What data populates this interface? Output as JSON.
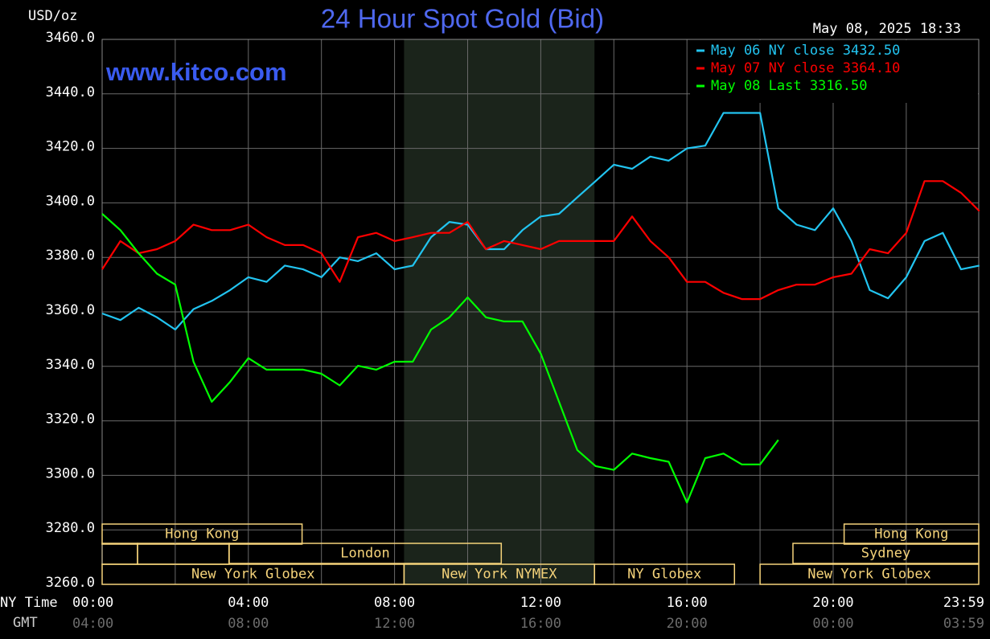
{
  "chart_data": {
    "type": "line",
    "title": "24 Hour Spot Gold (Bid)",
    "y_label": "USD/oz",
    "timestamp": "May 08, 2025 18:33",
    "watermark": "www.kitco.com",
    "x_label": "NY Time",
    "x2_label": "GMT",
    "x": [
      0,
      0.5,
      1,
      1.5,
      2,
      2.5,
      3,
      3.5,
      4,
      4.5,
      5,
      5.5,
      6,
      6.5,
      7,
      7.5,
      8,
      8.5,
      9,
      9.5,
      10,
      10.5,
      11,
      11.5,
      12,
      12.5,
      13,
      13.5,
      14,
      14.5,
      15,
      15.5,
      16,
      16.5,
      17,
      17.5,
      18,
      18.5,
      19,
      19.5,
      20,
      20.5,
      21,
      21.5,
      22,
      22.5,
      23,
      23.5,
      24
    ],
    "series": [
      {
        "name": "May 06 NY close 3432.50",
        "color": "#22c4f0",
        "values": [
          3359.4,
          3357,
          3361.5,
          3358,
          3353.5,
          3361,
          3364,
          3368,
          3372.7,
          3371,
          3377,
          3375.6,
          3372.7,
          3380,
          3378.6,
          3381.5,
          3375.6,
          3377,
          3387.4,
          3393,
          3392,
          3383,
          3383,
          3390,
          3395,
          3396,
          3402,
          3408,
          3414,
          3412.5,
          3417,
          3415.5,
          3420,
          3421,
          3433,
          3433,
          3433,
          3398,
          3392,
          3390,
          3398,
          3386,
          3368,
          3365,
          3372.7,
          3386,
          3389,
          3375.6,
          3377
        ]
      },
      {
        "name": "May 07 NY close 3364.10",
        "color": "#ff0000",
        "values": [
          3375.6,
          3386,
          3381.5,
          3383,
          3386,
          3392,
          3390,
          3390,
          3392,
          3387.4,
          3384.5,
          3384.5,
          3381.5,
          3371,
          3387.4,
          3389,
          3386,
          3387.4,
          3389,
          3389,
          3393,
          3383,
          3386,
          3384.5,
          3383,
          3386,
          3386,
          3386,
          3386,
          3395,
          3386,
          3380,
          3371,
          3371,
          3367,
          3364.7,
          3364.7,
          3368,
          3370,
          3370,
          3372.7,
          3374,
          3383,
          3381.5,
          3389,
          3408,
          3408,
          3403.7,
          3397
        ]
      },
      {
        "name": "May 08 Last 3316.50",
        "color": "#00ff00",
        "values": [
          3396,
          3390,
          3381.5,
          3374,
          3370,
          3341.7,
          3327,
          3334.3,
          3343,
          3338.8,
          3338.8,
          3338.8,
          3337.3,
          3333,
          3340.2,
          3338.8,
          3341.7,
          3341.7,
          3353.5,
          3358,
          3365.3,
          3358,
          3356.5,
          3356.5,
          3344.7,
          3327,
          3309.3,
          3303.4,
          3302,
          3308,
          3306.3,
          3305,
          3290,
          3306.3,
          3308,
          3304,
          3304,
          3313,
          null,
          null,
          null,
          null,
          null,
          null,
          null,
          null,
          null,
          null,
          null
        ]
      }
    ],
    "xlim": [
      0,
      23.983
    ],
    "ylim": [
      3260,
      3460
    ],
    "yticks": [
      {
        "value": 3260,
        "label": "3260.0"
      },
      {
        "value": 3280,
        "label": "3280.0"
      },
      {
        "value": 3300,
        "label": "3300.0"
      },
      {
        "value": 3320,
        "label": "3320.0"
      },
      {
        "value": 3340,
        "label": "3340.0"
      },
      {
        "value": 3360,
        "label": "3360.0"
      },
      {
        "value": 3380,
        "label": "3380.0"
      },
      {
        "value": 3400,
        "label": "3400.0"
      },
      {
        "value": 3420,
        "label": "3420.0"
      },
      {
        "value": 3440,
        "label": "3440.0"
      },
      {
        "value": 3460,
        "label": "3460.0"
      }
    ],
    "xticks": [
      {
        "value": 0,
        "label": "00:00"
      },
      {
        "value": 4,
        "label": "04:00"
      },
      {
        "value": 8,
        "label": "08:00"
      },
      {
        "value": 12,
        "label": "12:00"
      },
      {
        "value": 16,
        "label": "16:00"
      },
      {
        "value": 20,
        "label": "20:00"
      },
      {
        "value": 23.983,
        "label": "23:59"
      }
    ],
    "x2ticklabels": [
      "04:00",
      "08:00",
      "12:00",
      "16:00",
      "20:00",
      "00:00",
      "03:59"
    ],
    "grid_step": 2,
    "shaded_span": [
      8.26,
      13.47
    ],
    "sessions": [
      {
        "name": "Hong Kong",
        "row": 0,
        "start": 0,
        "end": 5.47
      },
      {
        "name": "Hong Kong",
        "row": 0,
        "start": 20.3,
        "end": 23.983
      },
      {
        "name": "London",
        "row": 1,
        "start": 3.47,
        "end": 10.92
      },
      {
        "name": "Sydney",
        "row": 1,
        "start": 18.9,
        "end": 23.983
      },
      {
        "name": "New York Globex",
        "row": 2,
        "start": 0,
        "end": 8.26
      },
      {
        "name": "New York NYMEX",
        "row": 2,
        "start": 8.26,
        "end": 13.47
      },
      {
        "name": "NY Globex",
        "row": 2,
        "start": 13.47,
        "end": 17.3
      },
      {
        "name": "New York Globex",
        "row": 2,
        "start": 18.0,
        "end": 23.983
      }
    ]
  }
}
